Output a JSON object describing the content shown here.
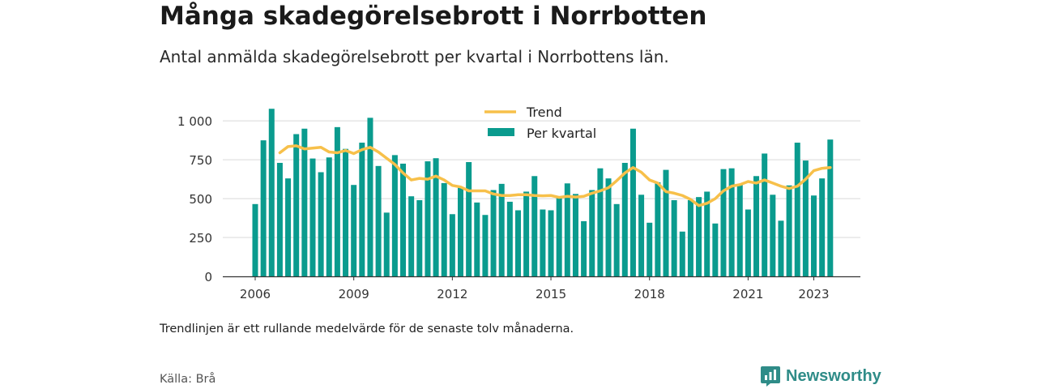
{
  "header": {
    "title": "Många skadegörelsebrott i Norrbotten",
    "subtitle": "Antal anmälda skadegörelsebrott per kvartal i Norrbottens län."
  },
  "footer": {
    "note": "Trendlinjen är ett rullande medelvärde för de senaste tolv månaderna.",
    "source": "Källa: Brå",
    "brand": "Newsworthy"
  },
  "colors": {
    "bars": "#0a9b8e",
    "trend": "#f7c04a",
    "grid": "#d9d9d9",
    "brand": "#2f8c88"
  },
  "chart_data": {
    "type": "bar",
    "title": "",
    "xlabel": "",
    "ylabel": "",
    "ylim": [
      0,
      1100
    ],
    "y_ticks": [
      0,
      250,
      500,
      750,
      1000
    ],
    "y_tick_labels": [
      "0",
      "250",
      "500",
      "750",
      "1 000"
    ],
    "x_tick_labels": [
      {
        "label": "2006",
        "x": "2006-Q1"
      },
      {
        "label": "2009",
        "x": "2009-Q1"
      },
      {
        "label": "2012",
        "x": "2012-Q1"
      },
      {
        "label": "2015",
        "x": "2015-Q1"
      },
      {
        "label": "2018",
        "x": "2018-Q1"
      },
      {
        "label": "2021",
        "x": "2021-Q1"
      },
      {
        "label": "2023",
        "x": "2023-Q1"
      }
    ],
    "legend": {
      "position": "top-center",
      "entries": [
        "Trend",
        "Per kvartal"
      ]
    },
    "grid": true,
    "categories": [
      "2006-Q1",
      "2006-Q2",
      "2006-Q3",
      "2006-Q4",
      "2007-Q1",
      "2007-Q2",
      "2007-Q3",
      "2007-Q4",
      "2008-Q1",
      "2008-Q2",
      "2008-Q3",
      "2008-Q4",
      "2009-Q1",
      "2009-Q2",
      "2009-Q3",
      "2009-Q4",
      "2010-Q1",
      "2010-Q2",
      "2010-Q3",
      "2010-Q4",
      "2011-Q1",
      "2011-Q2",
      "2011-Q3",
      "2011-Q4",
      "2012-Q1",
      "2012-Q2",
      "2012-Q3",
      "2012-Q4",
      "2013-Q1",
      "2013-Q2",
      "2013-Q3",
      "2013-Q4",
      "2014-Q1",
      "2014-Q2",
      "2014-Q3",
      "2014-Q4",
      "2015-Q1",
      "2015-Q2",
      "2015-Q3",
      "2015-Q4",
      "2016-Q1",
      "2016-Q2",
      "2016-Q3",
      "2016-Q4",
      "2017-Q1",
      "2017-Q2",
      "2017-Q3",
      "2017-Q4",
      "2018-Q1",
      "2018-Q2",
      "2018-Q3",
      "2018-Q4",
      "2019-Q1",
      "2019-Q2",
      "2019-Q3",
      "2019-Q4",
      "2020-Q1",
      "2020-Q2",
      "2020-Q3",
      "2020-Q4",
      "2021-Q1",
      "2021-Q2",
      "2021-Q3",
      "2021-Q4",
      "2022-Q1",
      "2022-Q2",
      "2022-Q3",
      "2022-Q4",
      "2023-Q1",
      "2023-Q2",
      "2023-Q3"
    ],
    "series": [
      {
        "name": "Per kvartal",
        "type": "bar",
        "values": [
          465,
          875,
          1078,
          730,
          630,
          915,
          950,
          758,
          670,
          765,
          960,
          820,
          588,
          860,
          1020,
          710,
          410,
          780,
          725,
          515,
          490,
          740,
          760,
          600,
          400,
          570,
          735,
          475,
          395,
          555,
          595,
          480,
          425,
          545,
          645,
          430,
          425,
          505,
          598,
          530,
          355,
          555,
          695,
          630,
          465,
          730,
          950,
          525,
          345,
          605,
          685,
          490,
          288,
          490,
          510,
          545,
          340,
          690,
          695,
          590,
          430,
          645,
          790,
          525,
          358,
          585,
          860,
          745,
          520,
          630,
          880
        ]
      },
      {
        "name": "Trend",
        "type": "line",
        "values": [
          null,
          null,
          null,
          795,
          835,
          840,
          820,
          825,
          830,
          800,
          795,
          810,
          790,
          815,
          830,
          800,
          760,
          720,
          665,
          620,
          630,
          625,
          645,
          620,
          585,
          575,
          550,
          550,
          550,
          530,
          520,
          520,
          525,
          525,
          520,
          518,
          520,
          508,
          515,
          510,
          515,
          535,
          550,
          570,
          615,
          665,
          700,
          670,
          620,
          600,
          545,
          535,
          520,
          495,
          455,
          470,
          500,
          550,
          580,
          590,
          610,
          600,
          620,
          600,
          580,
          565,
          580,
          625,
          680,
          695,
          700
        ]
      }
    ]
  }
}
